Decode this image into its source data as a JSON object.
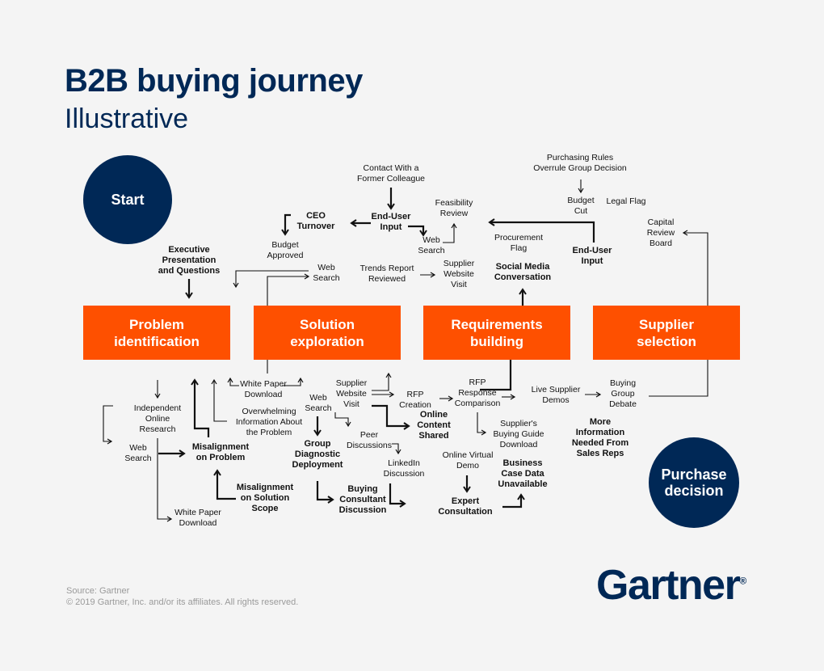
{
  "title": "B2B buying journey",
  "subtitle": "Illustrative",
  "start_label": "Start",
  "end_label": "Purchase\ndecision",
  "stages": [
    "Problem\nidentification",
    "Solution\nexploration",
    "Requirements\nbuilding",
    "Supplier\nselection"
  ],
  "colors": {
    "navy": "#002856",
    "orange": "#fe5000",
    "background": "#f4f4f4"
  },
  "nodes": [
    {
      "text": "Contact With a\nFormer Colleague",
      "bold": false
    },
    {
      "text": "End-User\nInput",
      "bold": true
    },
    {
      "text": "CEO\nTurnover",
      "bold": true
    },
    {
      "text": "Budget\nApproved",
      "bold": false
    },
    {
      "text": "Feasibility\nReview",
      "bold": false
    },
    {
      "text": "Web\nSearch",
      "bold": false
    },
    {
      "text": "Executive\nPresentation\nand Questions",
      "bold": true
    },
    {
      "text": "Web\nSearch",
      "bold": false
    },
    {
      "text": "Trends Report\nReviewed",
      "bold": false
    },
    {
      "text": "Supplier\nWebsite\nVisit",
      "bold": false
    },
    {
      "text": "Purchasing Rules\nOverrule Group Decision",
      "bold": false
    },
    {
      "text": "Budget\nCut",
      "bold": false
    },
    {
      "text": "Legal Flag",
      "bold": false
    },
    {
      "text": "Procurement\nFlag",
      "bold": false
    },
    {
      "text": "End-User\nInput",
      "bold": true
    },
    {
      "text": "Social Media\nConversation",
      "bold": true
    },
    {
      "text": "Capital\nReview\nBoard",
      "bold": false
    },
    {
      "text": "White Paper\nDownload",
      "bold": false
    },
    {
      "text": "Independent\nOnline\nResearch",
      "bold": false
    },
    {
      "text": "Overwhelming\nInformation About\nthe Problem",
      "bold": false
    },
    {
      "text": "Web\nSearch",
      "bold": false
    },
    {
      "text": "Supplier\nWebsite\nVisit",
      "bold": false
    },
    {
      "text": "RFP\nCreation",
      "bold": false
    },
    {
      "text": "RFP\nResponse\nComparison",
      "bold": false
    },
    {
      "text": "Live Supplier\nDemos",
      "bold": false
    },
    {
      "text": "Buying\nGroup\nDebate",
      "bold": false
    },
    {
      "text": "Web\nSearch",
      "bold": false
    },
    {
      "text": "Misalignment\non Problem",
      "bold": true
    },
    {
      "text": "Online\nContent\nShared",
      "bold": true
    },
    {
      "text": "Peer\nDiscussions",
      "bold": false
    },
    {
      "text": "Supplier's\nBuying Guide\nDownload",
      "bold": false
    },
    {
      "text": "More\nInformation\nNeeded From\nSales Reps",
      "bold": true
    },
    {
      "text": "Group\nDiagnostic\nDeployment",
      "bold": true
    },
    {
      "text": "LinkedIn\nDiscussion",
      "bold": false
    },
    {
      "text": "Online Virtual\nDemo",
      "bold": false
    },
    {
      "text": "Business\nCase Data\nUnavailable",
      "bold": true
    },
    {
      "text": "Misalignment\non Solution\nScope",
      "bold": true
    },
    {
      "text": "Buying\nConsultant\nDiscussion",
      "bold": true
    },
    {
      "text": "Expert\nConsultation",
      "bold": true
    },
    {
      "text": "White Paper\nDownload",
      "bold": false
    }
  ],
  "footer": {
    "source": "Source: Gartner",
    "copyright": "© 2019 Gartner, Inc. and/or its affiliates. All rights reserved."
  },
  "logo": "Gartner"
}
